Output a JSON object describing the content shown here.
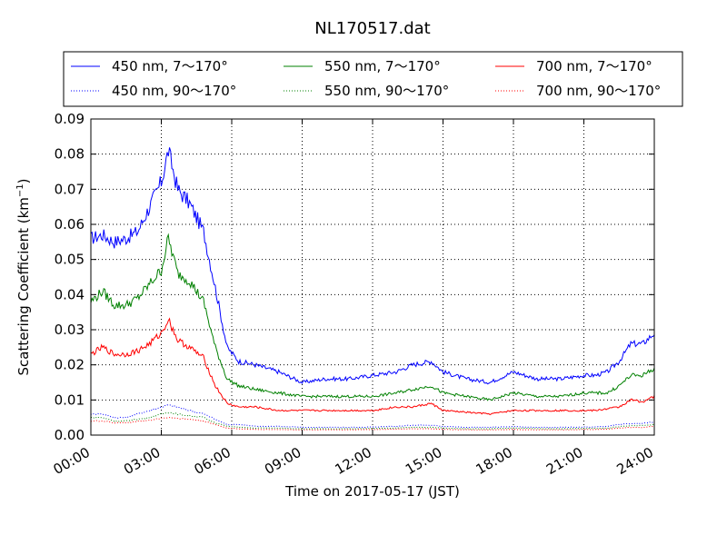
{
  "chart_data": {
    "type": "line",
    "title": "NL170517.dat",
    "xlabel": "Time on 2017-05-17 (JST)",
    "ylabel": "Scattering Coefficient (km",
    "ylabel_unit_exp": "−1",
    "ylabel_close": ")",
    "xlim": [
      0,
      24
    ],
    "ylim": [
      0,
      0.09
    ],
    "x_ticks": [
      0,
      3,
      6,
      9,
      12,
      15,
      18,
      21,
      24
    ],
    "x_tick_labels": [
      "00:00",
      "03:00",
      "06:00",
      "09:00",
      "12:00",
      "15:00",
      "18:00",
      "21:00",
      "24:00"
    ],
    "y_ticks": [
      0,
      0.01,
      0.02,
      0.03,
      0.04,
      0.05,
      0.06,
      0.07,
      0.08,
      0.09
    ],
    "y_tick_labels": [
      "0.00",
      "0.01",
      "0.02",
      "0.03",
      "0.04",
      "0.05",
      "0.06",
      "0.07",
      "0.08",
      "0.09"
    ],
    "grid": true,
    "legend_position": "top, above plot",
    "x": [
      0,
      0.5,
      1,
      1.5,
      2,
      2.5,
      3,
      3.3,
      3.7,
      4.2,
      4.8,
      5.3,
      5.8,
      6.3,
      7,
      8,
      9,
      10,
      11,
      12,
      13,
      13.7,
      14.5,
      15,
      16,
      17,
      18,
      19,
      20,
      21,
      21.5,
      22,
      22.5,
      23,
      23.5,
      24
    ],
    "series": [
      {
        "name": "450 nm, 7～170°",
        "color": "#0000ff",
        "style": "solid",
        "values": [
          0.056,
          0.057,
          0.055,
          0.056,
          0.058,
          0.065,
          0.072,
          0.081,
          0.07,
          0.066,
          0.058,
          0.042,
          0.025,
          0.021,
          0.02,
          0.018,
          0.015,
          0.016,
          0.016,
          0.017,
          0.018,
          0.02,
          0.021,
          0.018,
          0.016,
          0.015,
          0.018,
          0.016,
          0.016,
          0.017,
          0.017,
          0.018,
          0.021,
          0.026,
          0.026,
          0.029
        ]
      },
      {
        "name": "450 nm, 90～170°",
        "color": "#0000ff",
        "style": "dotted",
        "values": [
          0.006,
          0.006,
          0.005,
          0.005,
          0.006,
          0.007,
          0.008,
          0.0085,
          0.008,
          0.007,
          0.006,
          0.0045,
          0.003,
          0.003,
          0.0025,
          0.0025,
          0.0022,
          0.0022,
          0.0022,
          0.0023,
          0.0025,
          0.0028,
          0.0028,
          0.0025,
          0.0022,
          0.0022,
          0.0024,
          0.0022,
          0.0022,
          0.0023,
          0.0023,
          0.0025,
          0.003,
          0.0033,
          0.0033,
          0.0037
        ]
      },
      {
        "name": "550 nm, 7～170°",
        "color": "#008000",
        "style": "solid",
        "values": [
          0.038,
          0.041,
          0.037,
          0.037,
          0.039,
          0.043,
          0.047,
          0.056,
          0.046,
          0.044,
          0.038,
          0.025,
          0.016,
          0.014,
          0.013,
          0.012,
          0.011,
          0.011,
          0.011,
          0.011,
          0.012,
          0.013,
          0.014,
          0.012,
          0.011,
          0.01,
          0.012,
          0.011,
          0.011,
          0.012,
          0.012,
          0.012,
          0.014,
          0.017,
          0.017,
          0.019
        ]
      },
      {
        "name": "550 nm, 90～170°",
        "color": "#008000",
        "style": "dotted",
        "values": [
          0.005,
          0.005,
          0.004,
          0.004,
          0.0045,
          0.005,
          0.006,
          0.0065,
          0.006,
          0.0055,
          0.005,
          0.0035,
          0.0025,
          0.0022,
          0.002,
          0.002,
          0.0018,
          0.0018,
          0.0018,
          0.0019,
          0.002,
          0.0022,
          0.0022,
          0.002,
          0.0018,
          0.0018,
          0.002,
          0.0018,
          0.0018,
          0.0019,
          0.0019,
          0.002,
          0.0024,
          0.0027,
          0.0027,
          0.003
        ]
      },
      {
        "name": "700 nm, 7～170°",
        "color": "#ff0000",
        "style": "solid",
        "values": [
          0.023,
          0.025,
          0.023,
          0.023,
          0.024,
          0.026,
          0.029,
          0.033,
          0.027,
          0.025,
          0.022,
          0.014,
          0.009,
          0.008,
          0.008,
          0.007,
          0.007,
          0.007,
          0.007,
          0.007,
          0.008,
          0.008,
          0.009,
          0.007,
          0.0065,
          0.006,
          0.007,
          0.007,
          0.007,
          0.007,
          0.007,
          0.0075,
          0.008,
          0.01,
          0.0095,
          0.011
        ]
      },
      {
        "name": "700 nm, 90～170°",
        "color": "#ff0000",
        "style": "dotted",
        "values": [
          0.004,
          0.004,
          0.0035,
          0.0035,
          0.004,
          0.0042,
          0.0048,
          0.005,
          0.0048,
          0.0045,
          0.004,
          0.003,
          0.002,
          0.0018,
          0.0016,
          0.0016,
          0.0015,
          0.0015,
          0.0015,
          0.0016,
          0.0017,
          0.0018,
          0.0018,
          0.0016,
          0.0015,
          0.0015,
          0.0016,
          0.0015,
          0.0015,
          0.0016,
          0.0016,
          0.0017,
          0.002,
          0.0022,
          0.0022,
          0.0025
        ]
      }
    ]
  }
}
